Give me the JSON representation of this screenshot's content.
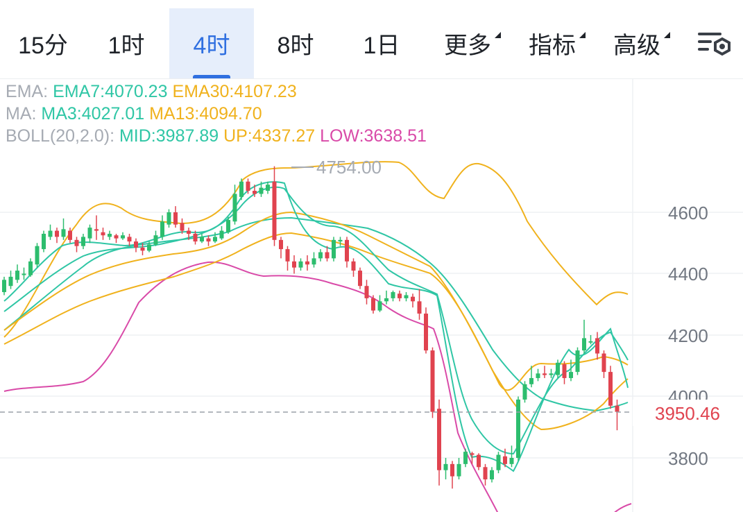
{
  "tabs": [
    {
      "label": "15分",
      "active": false,
      "has_menu": false
    },
    {
      "label": "1时",
      "active": false,
      "has_menu": false
    },
    {
      "label": "4时",
      "active": true,
      "has_menu": false
    },
    {
      "label": "8时",
      "active": false,
      "has_menu": false
    },
    {
      "label": "1日",
      "active": false,
      "has_menu": false
    },
    {
      "label": "更多",
      "active": false,
      "has_menu": true
    },
    {
      "label": "指标",
      "active": false,
      "has_menu": true
    },
    {
      "label": "高级",
      "active": false,
      "has_menu": true
    }
  ],
  "settings_icon": "chart-settings-icon",
  "indicators": {
    "ema": {
      "label": "EMA:",
      "ema7": "EMA7:4070.23",
      "ema30": "EMA30:4107.23"
    },
    "ma": {
      "label": "MA:",
      "ma3": "MA3:4027.01",
      "ma13": "MA13:4094.70"
    },
    "boll": {
      "label": "BOLL(20,2.0):",
      "mid": "MID:3987.89",
      "up": "UP:4337.27",
      "low": "LOW:3638.51"
    }
  },
  "colors": {
    "up_candle": "#2dbd6e",
    "down_candle": "#e0434f",
    "teal": "#2fc6a5",
    "orange": "#f0b21d",
    "magenta": "#d94aa8",
    "active_tab": "#2f6fe0",
    "price_label": "#e0434f"
  },
  "chart_data": {
    "type": "candlestick",
    "y_axis_ticks": [
      "4600",
      "4400",
      "4200",
      "4000",
      "3800"
    ],
    "max_marker": "4754.00",
    "current_price": "3950.46",
    "candles": [
      [
        4340,
        4380,
        4330,
        4390
      ],
      [
        4360,
        4390,
        4350,
        4410
      ],
      [
        4380,
        4410,
        4370,
        4430
      ],
      [
        4400,
        4400,
        4380,
        4420
      ],
      [
        4395,
        4440,
        4390,
        4450
      ],
      [
        4430,
        4490,
        4420,
        4500
      ],
      [
        4480,
        4530,
        4470,
        4540
      ],
      [
        4520,
        4540,
        4510,
        4560
      ],
      [
        4540,
        4520,
        4500,
        4550
      ],
      [
        4520,
        4545,
        4510,
        4580
      ],
      [
        4540,
        4510,
        4500,
        4550
      ],
      [
        4510,
        4490,
        4470,
        4520
      ],
      [
        4490,
        4520,
        4480,
        4530
      ],
      [
        4515,
        4550,
        4500,
        4560
      ],
      [
        4545,
        4540,
        4510,
        4590
      ],
      [
        4535,
        4525,
        4510,
        4550
      ],
      [
        4520,
        4530,
        4510,
        4540
      ],
      [
        4525,
        4515,
        4500,
        4530
      ],
      [
        4515,
        4525,
        4510,
        4535
      ],
      [
        4520,
        4505,
        4490,
        4530
      ],
      [
        4505,
        4485,
        4470,
        4515
      ],
      [
        4485,
        4475,
        4460,
        4500
      ],
      [
        4475,
        4495,
        4470,
        4505
      ],
      [
        4495,
        4525,
        4490,
        4540
      ],
      [
        4520,
        4570,
        4510,
        4590
      ],
      [
        4560,
        4600,
        4550,
        4610
      ],
      [
        4600,
        4560,
        4550,
        4620
      ],
      [
        4565,
        4540,
        4530,
        4580
      ],
      [
        4540,
        4530,
        4510,
        4550
      ],
      [
        4530,
        4505,
        4495,
        4540
      ],
      [
        4505,
        4520,
        4500,
        4530
      ],
      [
        4515,
        4505,
        4490,
        4525
      ],
      [
        4505,
        4520,
        4500,
        4535
      ],
      [
        4515,
        4540,
        4510,
        4555
      ],
      [
        4535,
        4575,
        4530,
        4585
      ],
      [
        4570,
        4660,
        4560,
        4690
      ],
      [
        4650,
        4700,
        4640,
        4710
      ],
      [
        4700,
        4670,
        4660,
        4710
      ],
      [
        4670,
        4660,
        4650,
        4690
      ],
      [
        4660,
        4680,
        4650,
        4700
      ],
      [
        4670,
        4690,
        4660,
        4700
      ],
      [
        4700,
        4510,
        4490,
        4750
      ],
      [
        4510,
        4480,
        4450,
        4520
      ],
      [
        4480,
        4440,
        4410,
        4490
      ],
      [
        4440,
        4420,
        4400,
        4460
      ],
      [
        4420,
        4440,
        4410,
        4450
      ],
      [
        4440,
        4430,
        4410,
        4460
      ],
      [
        4430,
        4450,
        4420,
        4470
      ],
      [
        4450,
        4470,
        4440,
        4480
      ],
      [
        4470,
        4450,
        4440,
        4490
      ],
      [
        4450,
        4510,
        4440,
        4520
      ],
      [
        4505,
        4510,
        4490,
        4520
      ],
      [
        4510,
        4440,
        4420,
        4520
      ],
      [
        4440,
        4410,
        4390,
        4450
      ],
      [
        4410,
        4360,
        4350,
        4420
      ],
      [
        4360,
        4320,
        4300,
        4380
      ],
      [
        4320,
        4280,
        4270,
        4330
      ],
      [
        4280,
        4310,
        4275,
        4330
      ],
      [
        4310,
        4320,
        4300,
        4345
      ],
      [
        4320,
        4340,
        4310,
        4345
      ],
      [
        4335,
        4320,
        4310,
        4345
      ],
      [
        4320,
        4330,
        4310,
        4340
      ],
      [
        4325,
        4310,
        4290,
        4335
      ],
      [
        4310,
        4270,
        4250,
        4350
      ],
      [
        4270,
        4150,
        4140,
        4290
      ],
      [
        4150,
        3950,
        3930,
        4160
      ],
      [
        3960,
        3760,
        3710,
        3990
      ],
      [
        3760,
        3780,
        3730,
        3800
      ],
      [
        3780,
        3740,
        3700,
        3790
      ],
      [
        3740,
        3780,
        3730,
        3800
      ],
      [
        3780,
        3820,
        3770,
        3830
      ],
      [
        3815,
        3810,
        3780,
        3820
      ],
      [
        3810,
        3770,
        3760,
        3815
      ],
      [
        3770,
        3730,
        3710,
        3780
      ],
      [
        3730,
        3760,
        3720,
        3770
      ],
      [
        3760,
        3810,
        3750,
        3820
      ],
      [
        3805,
        3780,
        3770,
        3830
      ],
      [
        3780,
        3800,
        3770,
        3840
      ],
      [
        3800,
        3990,
        3790,
        4000
      ],
      [
        3990,
        4040,
        3980,
        4050
      ],
      [
        4040,
        4060,
        4030,
        4100
      ],
      [
        4060,
        4075,
        4050,
        4090
      ],
      [
        4075,
        4070,
        4060,
        4100
      ],
      [
        4070,
        4075,
        4060,
        4090
      ],
      [
        4070,
        4110,
        4060,
        4120
      ],
      [
        4105,
        4060,
        4040,
        4115
      ],
      [
        4060,
        4080,
        4050,
        4120
      ],
      [
        4080,
        4150,
        4070,
        4160
      ],
      [
        4150,
        4190,
        4140,
        4250
      ],
      [
        4180,
        4180,
        4170,
        4200
      ],
      [
        4190,
        4140,
        4120,
        4210
      ],
      [
        4140,
        4080,
        4060,
        4150
      ],
      [
        4080,
        3970,
        3960,
        4100
      ],
      [
        3970,
        3950,
        3890,
        3990
      ]
    ]
  }
}
